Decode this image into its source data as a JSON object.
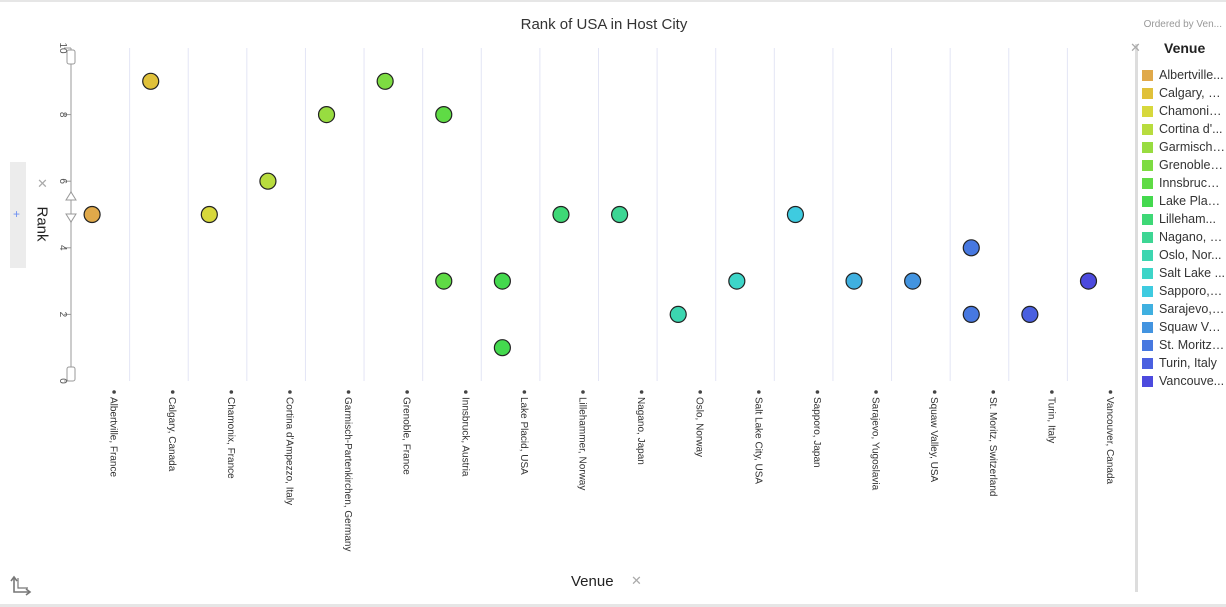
{
  "header": {
    "title": "Rank of USA in Host City",
    "ordered_by": "Ordered by Ven..."
  },
  "y_axis_control": {
    "label": "Rank",
    "close_icon": "close-icon",
    "add_icon": "plus-icon"
  },
  "x_axis_control": {
    "label": "Venue",
    "close_icon": "close-icon"
  },
  "corner": {
    "icon": "axis-swap-icon"
  },
  "legend": {
    "title": "Venue",
    "close_icon": "close-icon",
    "items": [
      {
        "label": "Albertville...",
        "color": "#e0a94a"
      },
      {
        "label": "Calgary, C...",
        "color": "#e0c13a"
      },
      {
        "label": "Chamonix...",
        "color": "#d7d83c"
      },
      {
        "label": "Cortina d'...",
        "color": "#b8dc3e"
      },
      {
        "label": "Garmisch-...",
        "color": "#98dc40"
      },
      {
        "label": "Grenoble, ...",
        "color": "#7ddc42"
      },
      {
        "label": "Innsbruck,...",
        "color": "#5fdb45"
      },
      {
        "label": "Lake Placi...",
        "color": "#44d94e"
      },
      {
        "label": "Lilleham...",
        "color": "#3ed876"
      },
      {
        "label": "Nagano, J...",
        "color": "#3dd694"
      },
      {
        "label": "Oslo, Nor...",
        "color": "#3cd6b0"
      },
      {
        "label": "Salt Lake ...",
        "color": "#3dd5c8"
      },
      {
        "label": "Sapporo, J...",
        "color": "#3ecbe0"
      },
      {
        "label": "Sarajevo, ...",
        "color": "#3fb0e0"
      },
      {
        "label": "Squaw Val...",
        "color": "#4394e0"
      },
      {
        "label": "St. Moritz, ...",
        "color": "#4778e0"
      },
      {
        "label": "Turin, Italy",
        "color": "#4a60e0"
      },
      {
        "label": "Vancouve...",
        "color": "#4c4ade"
      }
    ]
  },
  "chart_data": {
    "type": "scatter",
    "title": "Rank of USA in Host City",
    "xlabel": "Venue",
    "ylabel": "Rank",
    "ylim": [
      0,
      10
    ],
    "yticks": [
      0,
      2,
      4,
      6,
      8,
      10
    ],
    "grid": "vertical",
    "legend_position": "right",
    "categories": [
      "Albertville, France",
      "Calgary, Canada",
      "Chamonix, France",
      "Cortina d'Ampezzo, Italy",
      "Garmisch-Partenkirchen, Germany",
      "Grenoble, France",
      "Innsbruck, Austria",
      "Lake Placid, USA",
      "Lillehammer, Norway",
      "Nagano, Japan",
      "Oslo, Norway",
      "Salt Lake City, USA",
      "Sapporo, Japan",
      "Sarajevo, Yugoslavia",
      "Squaw Valley, USA",
      "St. Moritz, Switzerland",
      "Turin, Italy",
      "Vancouver, Canada"
    ],
    "points": [
      {
        "venue": "Albertville, France",
        "rank": 5
      },
      {
        "venue": "Calgary, Canada",
        "rank": 9
      },
      {
        "venue": "Chamonix, France",
        "rank": 5
      },
      {
        "venue": "Cortina d'Ampezzo, Italy",
        "rank": 6
      },
      {
        "venue": "Garmisch-Partenkirchen, Germany",
        "rank": 8
      },
      {
        "venue": "Grenoble, France",
        "rank": 9
      },
      {
        "venue": "Innsbruck, Austria",
        "rank": 8
      },
      {
        "venue": "Innsbruck, Austria",
        "rank": 3
      },
      {
        "venue": "Lake Placid, USA",
        "rank": 3
      },
      {
        "venue": "Lake Placid, USA",
        "rank": 1
      },
      {
        "venue": "Lillehammer, Norway",
        "rank": 5
      },
      {
        "venue": "Nagano, Japan",
        "rank": 5
      },
      {
        "venue": "Oslo, Norway",
        "rank": 2
      },
      {
        "venue": "Salt Lake City, USA",
        "rank": 3
      },
      {
        "venue": "Sapporo, Japan",
        "rank": 5
      },
      {
        "venue": "Sarajevo, Yugoslavia",
        "rank": 3
      },
      {
        "venue": "Squaw Valley, USA",
        "rank": 3
      },
      {
        "venue": "St. Moritz, Switzerland",
        "rank": 4
      },
      {
        "venue": "St. Moritz, Switzerland",
        "rank": 2
      },
      {
        "venue": "Turin, Italy",
        "rank": 2
      },
      {
        "venue": "Vancouver, Canada",
        "rank": 3
      }
    ]
  }
}
